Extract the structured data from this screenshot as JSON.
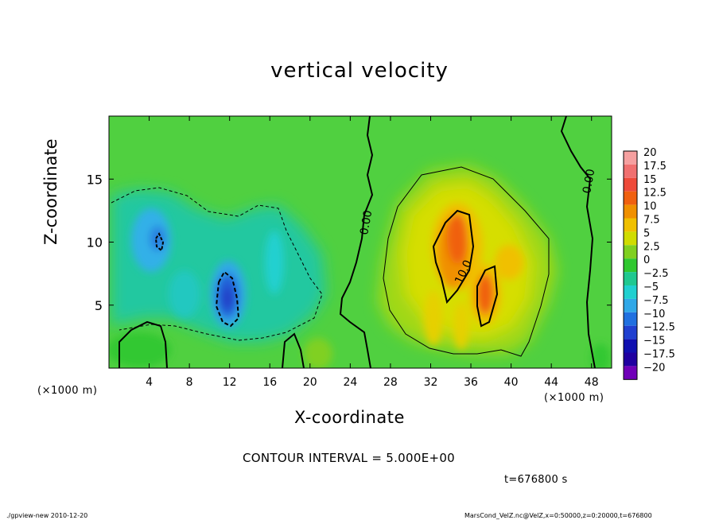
{
  "chart_data": {
    "type": "heatmap",
    "title": "vertical velocity",
    "xlabel": "X-coordinate",
    "ylabel": "Z-coordinate",
    "x_unit": "(×1000 m)",
    "z_unit": "(×1000 m)",
    "xlim": [
      0,
      50
    ],
    "ylim": [
      0,
      20
    ],
    "x_ticks": [
      4,
      8,
      12,
      16,
      20,
      24,
      28,
      32,
      36,
      40,
      44,
      48
    ],
    "y_ticks": [
      5,
      10,
      15
    ],
    "colorbar": {
      "levels": [
        20,
        17.5,
        15,
        12.5,
        10,
        7.5,
        5,
        2.5,
        0,
        -2.5,
        -5,
        -7.5,
        -10,
        -12.5,
        -15,
        -17.5,
        -20
      ],
      "labels": [
        "20",
        "17.5",
        "15",
        "12.5",
        "10",
        "7.5",
        "5",
        "2.5",
        "0",
        "−2.5",
        "−5",
        "−7.5",
        "−10",
        "−12.5",
        "−15",
        "−17.5",
        "−20"
      ],
      "colors": [
        "#f5a0a0",
        "#f07070",
        "#ee4a3a",
        "#f06010",
        "#f09000",
        "#f0c000",
        "#d0dc00",
        "#80d020",
        "#30c830",
        "#20c890",
        "#20d0d0",
        "#30a8e8",
        "#2070e0",
        "#2040d0",
        "#1010b0",
        "#2000a0",
        "#7000b8"
      ]
    },
    "contour_labels": [
      "0.00",
      "0.00",
      "10.0"
    ],
    "contour_interval": "CONTOUR INTERVAL = 5.000E+00",
    "time": "t=676800 s"
  },
  "footer": {
    "left": "./gpview-new 2010-12-20",
    "right": "MarsCond_VelZ.nc@VelZ,x=0:50000,z=0:20000,t=676800"
  }
}
